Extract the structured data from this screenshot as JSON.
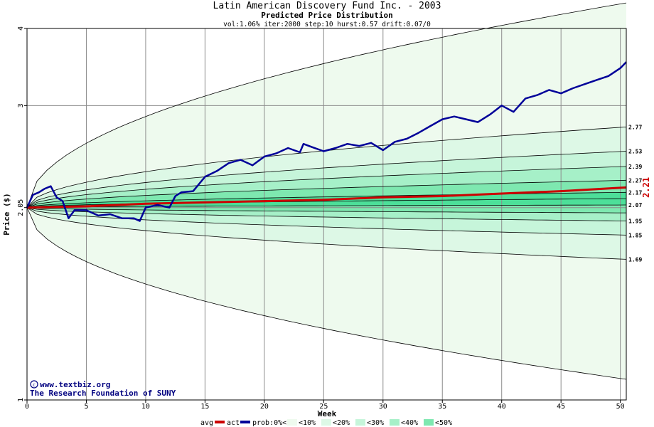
{
  "title": "Latin American Discovery Fund Inc. - 2003",
  "subtitle": "Predicted Price Distribution",
  "params": "vol:1.06% iter:2000 step:10 hurst:0.57 drift:0.07/0",
  "xlabel": "Week",
  "ylabel": "Price ($)",
  "watermark": {
    "site": "www.textbiz.org",
    "org": "The Research Foundation of SUNY"
  },
  "legend": {
    "avg": "avg",
    "act": "act",
    "prob_0": "prob:0%<",
    "prob_10": "<10%",
    "prob_20": "<20%",
    "prob_30": "<30%",
    "prob_40": "<40%",
    "prob_50": "<50%"
  },
  "colors": {
    "avg": "#cc0000",
    "act": "#000099",
    "band0": "#eefaee",
    "band10": "#ddf8e6",
    "band20": "#c6f5da",
    "band30": "#a6f0c8",
    "band40": "#7ee8b0",
    "band50": "#4ddf99",
    "grid": "#8c8c8c"
  },
  "chart_data": {
    "type": "area",
    "y_scale": "log",
    "xlim": [
      0,
      50.5
    ],
    "ylim": [
      1,
      4
    ],
    "x_ticks": [
      0,
      5,
      10,
      15,
      20,
      25,
      30,
      35,
      40,
      45,
      50
    ],
    "y_ticks": [
      {
        "value": 1,
        "label": "1"
      },
      {
        "value": 2.05,
        "label": "2.05"
      },
      {
        "value": 3,
        "label": "3"
      },
      {
        "value": 4,
        "label": "4"
      }
    ],
    "start_price": 2.05,
    "end_labels": [
      {
        "value": 2.77,
        "label": "2.77"
      },
      {
        "value": 2.53,
        "label": "2.53"
      },
      {
        "value": 2.39,
        "label": "2.39"
      },
      {
        "value": 2.27,
        "label": "2.27"
      },
      {
        "value": 2.17,
        "label": "2.17"
      },
      {
        "value": 2.07,
        "label": "2.07"
      },
      {
        "value": 1.95,
        "label": "1.95"
      },
      {
        "value": 1.85,
        "label": "1.85"
      },
      {
        "value": 1.69,
        "label": "1.69"
      }
    ],
    "current_price": {
      "value": 2.21,
      "label": "2.21"
    },
    "percentile_end_values": [
      1.08,
      1.69,
      1.85,
      1.95,
      2.01,
      2.07,
      2.12,
      2.17,
      2.27,
      2.39,
      2.53,
      2.77,
      4.4
    ],
    "series": [
      {
        "name": "avg",
        "x": [
          0,
          5,
          10,
          15,
          20,
          25,
          30,
          35,
          40,
          45,
          50.5
        ],
        "values": [
          2.05,
          2.06,
          2.08,
          2.09,
          2.1,
          2.11,
          2.13,
          2.14,
          2.16,
          2.18,
          2.21
        ]
      },
      {
        "name": "act",
        "x": [
          0,
          0.5,
          1,
          1.5,
          2,
          2.5,
          3,
          3.5,
          4,
          5,
          6,
          7,
          8,
          9,
          9.5,
          10,
          11,
          12,
          12.5,
          13,
          14,
          15,
          16,
          17,
          18,
          19,
          20,
          21,
          22,
          23,
          23.3,
          24,
          25,
          26,
          27,
          28,
          29,
          30,
          31,
          32,
          33,
          34,
          35,
          36,
          37,
          38,
          39,
          39.5,
          40,
          41,
          42,
          43,
          44,
          45,
          46,
          47,
          48,
          49,
          50,
          50.5
        ],
        "values": [
          2.05,
          2.15,
          2.17,
          2.2,
          2.22,
          2.13,
          2.1,
          1.97,
          2.03,
          2.03,
          1.99,
          2.0,
          1.97,
          1.97,
          1.95,
          2.05,
          2.07,
          2.05,
          2.14,
          2.17,
          2.18,
          2.3,
          2.35,
          2.42,
          2.45,
          2.4,
          2.48,
          2.51,
          2.56,
          2.52,
          2.6,
          2.57,
          2.53,
          2.56,
          2.6,
          2.58,
          2.61,
          2.54,
          2.62,
          2.65,
          2.71,
          2.78,
          2.85,
          2.88,
          2.85,
          2.82,
          2.9,
          2.95,
          3.0,
          2.93,
          3.08,
          3.12,
          3.18,
          3.14,
          3.2,
          3.25,
          3.3,
          3.35,
          3.45,
          3.53
        ]
      }
    ]
  }
}
